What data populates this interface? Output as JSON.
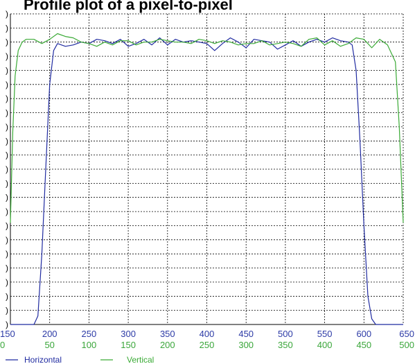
{
  "title": "Profile plot of a pixel-to-pixel",
  "colors": {
    "horizontal": "#1f2aa0",
    "vertical": "#3aaa35",
    "grid": "#000000",
    "axis": "#000000",
    "background": "#ffffff"
  },
  "chart_data": {
    "type": "line",
    "grid": true,
    "legend_position": "bottom-left",
    "x_axes": [
      {
        "series": "Horizontal",
        "range": [
          150,
          650
        ],
        "ticks": [
          "150",
          "200",
          "250",
          "300",
          "350",
          "400",
          "450",
          "500",
          "550",
          "600",
          "650"
        ]
      },
      {
        "series": "Vertical",
        "range": [
          0,
          500
        ],
        "ticks": [
          "0",
          "50",
          "100",
          "150",
          "200",
          "250",
          "300",
          "350",
          "400",
          "450",
          "500"
        ]
      }
    ],
    "y_tick_count": 23,
    "y_tick_labels": [
      ")",
      ")",
      ")",
      ")",
      ")",
      ")",
      ")",
      ")",
      ")",
      ")",
      ")",
      ")",
      ")",
      ")",
      ")",
      ")",
      ")",
      ")",
      ")",
      ")",
      ")",
      ")",
      ")"
    ],
    "series": [
      {
        "name": "Horizontal",
        "axis": 0,
        "x": [
          150,
          180,
          185,
          190,
          195,
          200,
          205,
          210,
          220,
          230,
          240,
          250,
          260,
          270,
          280,
          290,
          300,
          310,
          320,
          330,
          340,
          350,
          360,
          370,
          380,
          390,
          400,
          410,
          420,
          430,
          440,
          450,
          460,
          470,
          480,
          490,
          500,
          510,
          520,
          530,
          540,
          550,
          560,
          570,
          580,
          585,
          590,
          595,
          600,
          605,
          610,
          615,
          620,
          650
        ],
        "y": [
          0,
          0,
          3,
          25,
          55,
          85,
          97,
          99.5,
          98.5,
          99,
          100,
          99.5,
          101,
          100.5,
          99.5,
          101,
          98.5,
          99.5,
          101,
          99,
          101.5,
          99,
          101,
          100,
          100.5,
          100,
          99.5,
          97,
          99.5,
          101.5,
          100,
          98,
          101,
          100.5,
          100,
          97.5,
          99,
          100.5,
          98.5,
          100,
          101,
          100,
          101.5,
          100.5,
          100,
          99,
          90,
          65,
          35,
          10,
          2,
          0,
          0,
          0
        ]
      },
      {
        "name": "Vertical",
        "axis": 1,
        "x": [
          0,
          3,
          6,
          10,
          15,
          20,
          30,
          40,
          50,
          60,
          70,
          80,
          90,
          100,
          110,
          120,
          130,
          140,
          150,
          160,
          170,
          180,
          190,
          200,
          210,
          220,
          230,
          240,
          250,
          260,
          270,
          280,
          290,
          300,
          310,
          320,
          330,
          340,
          350,
          360,
          370,
          380,
          390,
          400,
          410,
          420,
          430,
          440,
          450,
          460,
          470,
          480,
          490,
          495,
          500
        ],
        "y": [
          36,
          68,
          88,
          97,
          100,
          101,
          101,
          99.5,
          101,
          103,
          102,
          101.5,
          100,
          99.5,
          98.5,
          100,
          99,
          100.5,
          100.5,
          99,
          100,
          100,
          101,
          100.5,
          100,
          100,
          99.5,
          101,
          100.5,
          99.5,
          100.5,
          100,
          99,
          99.5,
          99.5,
          100.5,
          99,
          99.5,
          100,
          99.5,
          98.5,
          101,
          101.5,
          99,
          100.5,
          98.5,
          99.5,
          101.5,
          101,
          98,
          101,
          99,
          93,
          70,
          36
        ]
      }
    ]
  },
  "legend": {
    "items": [
      {
        "label": "Horizontal"
      },
      {
        "label": "Vertical"
      }
    ]
  }
}
